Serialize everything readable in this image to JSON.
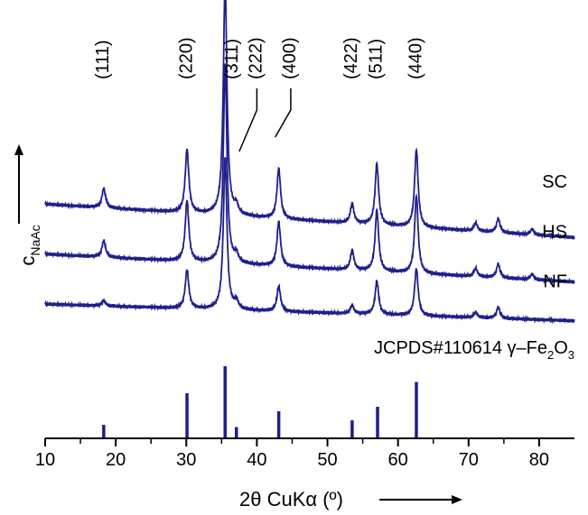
{
  "colors": {
    "trace": "#1f1f8c",
    "axis": "#000000",
    "reference": "#1f1f8c"
  },
  "chart_data": {
    "type": "line",
    "title": "",
    "xlabel": "2θ CuKα (º)",
    "ylabel_main": "c",
    "ylabel_sub": "NaAc",
    "xlim": [
      10,
      85
    ],
    "xticks": [
      "10",
      "20",
      "30",
      "40",
      "50",
      "60",
      "70",
      "80"
    ],
    "x_arrow": true,
    "y_arrow": true,
    "plane_labels": [
      "(111)",
      "(220)",
      "(311)",
      "(222)",
      "(400)",
      "(422)",
      "(511)",
      "(440)"
    ],
    "plane_positions": [
      18.3,
      30.1,
      35.5,
      37.1,
      43.1,
      53.5,
      57.0,
      62.6
    ],
    "series": [
      {
        "name": "SC",
        "baseline": 0.46,
        "slope": -0.12,
        "peaks": [
          [
            18.3,
            0.07
          ],
          [
            30.1,
            0.23
          ],
          [
            35.5,
            0.85
          ],
          [
            37.1,
            0.03
          ],
          [
            43.1,
            0.18
          ],
          [
            53.5,
            0.07
          ],
          [
            57.0,
            0.22
          ],
          [
            62.6,
            0.28
          ],
          [
            71.0,
            0.03
          ],
          [
            74.2,
            0.05
          ],
          [
            79.0,
            0.02
          ]
        ]
      },
      {
        "name": "HS",
        "baseline": 0.28,
        "slope": -0.1,
        "peaks": [
          [
            18.3,
            0.06
          ],
          [
            30.1,
            0.22
          ],
          [
            35.5,
            0.72
          ],
          [
            37.1,
            0.03
          ],
          [
            43.1,
            0.16
          ],
          [
            53.5,
            0.07
          ],
          [
            57.0,
            0.22
          ],
          [
            62.6,
            0.28
          ],
          [
            71.0,
            0.03
          ],
          [
            74.2,
            0.05
          ],
          [
            79.0,
            0.02
          ]
        ]
      },
      {
        "name": "NF",
        "baseline": 0.1,
        "slope": -0.06,
        "peaks": [
          [
            18.3,
            0.02
          ],
          [
            30.1,
            0.14
          ],
          [
            35.5,
            0.55
          ],
          [
            37.1,
            0.03
          ],
          [
            43.1,
            0.09
          ],
          [
            53.5,
            0.03
          ],
          [
            57.0,
            0.12
          ],
          [
            62.6,
            0.17
          ],
          [
            71.0,
            0.02
          ],
          [
            74.2,
            0.04
          ]
        ]
      }
    ],
    "reference": {
      "label_prefix": "JCPDS#110614  γ–Fe",
      "sub1": "2",
      "mid": "O",
      "sub2": "3",
      "x": [
        18.3,
        30.1,
        35.5,
        37.1,
        43.1,
        53.5,
        57.1,
        62.6
      ],
      "intensity": [
        6,
        20,
        32,
        5,
        12,
        8,
        14,
        25
      ]
    }
  }
}
